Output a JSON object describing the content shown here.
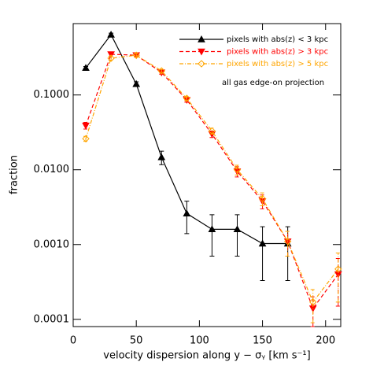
{
  "chart_data": {
    "type": "line",
    "x_label": "velocity dispersion along y − σᵧ [km s⁻¹]",
    "y_label": "fraction",
    "annotation": "all gas edge-on projection",
    "log_y": true,
    "xlim": [
      0,
      212
    ],
    "xticks": [
      0,
      50,
      100,
      150,
      200
    ],
    "ylim": [
      8e-05,
      0.9
    ],
    "yticks": [
      {
        "value": 0.0001,
        "label": "0.0001"
      },
      {
        "value": 0.001,
        "label": "0.0010"
      },
      {
        "value": 0.01,
        "label": "0.0100"
      },
      {
        "value": 0.1,
        "label": "0.1000"
      }
    ],
    "series": [
      {
        "name": "pixels with abs(z) < 3 kpc",
        "color": "#000000",
        "marker": "triangle-up",
        "dash": "solid",
        "x": [
          10,
          30,
          50,
          70,
          90,
          110,
          130,
          150,
          170
        ],
        "values": [
          0.23,
          0.64,
          0.14,
          0.0147,
          0.0026,
          0.0016,
          0.0016,
          0.00103,
          0.00103
        ],
        "errors": [
          0.01,
          0.03,
          0.01,
          0.003,
          0.0012,
          0.0009,
          0.0009,
          0.0007,
          0.0007
        ]
      },
      {
        "name": "pixels with abs(z) > 3 kpc",
        "color": "#ff0000",
        "marker": "triangle-down",
        "dash": "dashed",
        "x": [
          10,
          30,
          50,
          70,
          90,
          110,
          130,
          150,
          170,
          190,
          210
        ],
        "values": [
          0.039,
          0.35,
          0.34,
          0.2,
          0.086,
          0.03,
          0.0095,
          0.0038,
          0.0011,
          0.00014,
          0.0004
        ],
        "errors": [
          0.004,
          0.02,
          0.02,
          0.01,
          0.006,
          0.003,
          0.0015,
          0.0008,
          0.0004,
          6e-05,
          0.00025
        ]
      },
      {
        "name": "pixels with abs(z) > 5 kpc",
        "color": "#ffa500",
        "marker": "diamond",
        "dash": "dashdot",
        "x": [
          10,
          30,
          50,
          70,
          90,
          110,
          130,
          150,
          170,
          190,
          210
        ],
        "values": [
          0.026,
          0.31,
          0.34,
          0.21,
          0.09,
          0.033,
          0.01,
          0.0041,
          0.0011,
          0.00017,
          0.00047
        ],
        "errors": [
          0.002,
          0.02,
          0.02,
          0.01,
          0.006,
          0.003,
          0.0015,
          0.0008,
          0.0004,
          8e-05,
          0.0003
        ]
      }
    ]
  }
}
